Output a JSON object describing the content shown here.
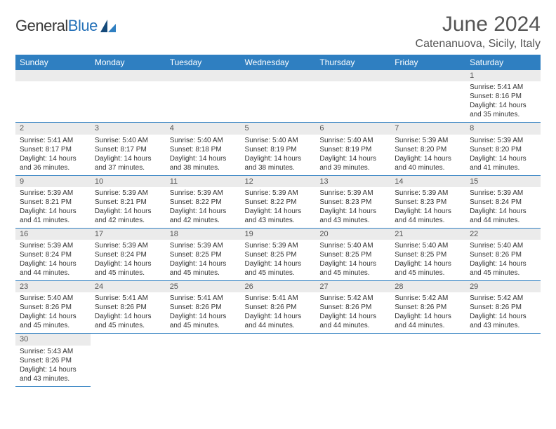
{
  "logo": {
    "text1": "General",
    "text2": "Blue"
  },
  "title": "June 2024",
  "location": "Catenanuova, Sicily, Italy",
  "colors": {
    "header_bg": "#2f7fc1",
    "header_fg": "#ffffff",
    "daynum_bg": "#ebebeb",
    "border": "#2f7fc1",
    "text": "#333333",
    "title_text": "#555555"
  },
  "weekdays": [
    "Sunday",
    "Monday",
    "Tuesday",
    "Wednesday",
    "Thursday",
    "Friday",
    "Saturday"
  ],
  "weeks": [
    [
      null,
      null,
      null,
      null,
      null,
      null,
      {
        "n": "1",
        "sr": "Sunrise: 5:41 AM",
        "ss": "Sunset: 8:16 PM",
        "d1": "Daylight: 14 hours",
        "d2": "and 35 minutes."
      }
    ],
    [
      {
        "n": "2",
        "sr": "Sunrise: 5:41 AM",
        "ss": "Sunset: 8:17 PM",
        "d1": "Daylight: 14 hours",
        "d2": "and 36 minutes."
      },
      {
        "n": "3",
        "sr": "Sunrise: 5:40 AM",
        "ss": "Sunset: 8:17 PM",
        "d1": "Daylight: 14 hours",
        "d2": "and 37 minutes."
      },
      {
        "n": "4",
        "sr": "Sunrise: 5:40 AM",
        "ss": "Sunset: 8:18 PM",
        "d1": "Daylight: 14 hours",
        "d2": "and 38 minutes."
      },
      {
        "n": "5",
        "sr": "Sunrise: 5:40 AM",
        "ss": "Sunset: 8:19 PM",
        "d1": "Daylight: 14 hours",
        "d2": "and 38 minutes."
      },
      {
        "n": "6",
        "sr": "Sunrise: 5:40 AM",
        "ss": "Sunset: 8:19 PM",
        "d1": "Daylight: 14 hours",
        "d2": "and 39 minutes."
      },
      {
        "n": "7",
        "sr": "Sunrise: 5:39 AM",
        "ss": "Sunset: 8:20 PM",
        "d1": "Daylight: 14 hours",
        "d2": "and 40 minutes."
      },
      {
        "n": "8",
        "sr": "Sunrise: 5:39 AM",
        "ss": "Sunset: 8:20 PM",
        "d1": "Daylight: 14 hours",
        "d2": "and 41 minutes."
      }
    ],
    [
      {
        "n": "9",
        "sr": "Sunrise: 5:39 AM",
        "ss": "Sunset: 8:21 PM",
        "d1": "Daylight: 14 hours",
        "d2": "and 41 minutes."
      },
      {
        "n": "10",
        "sr": "Sunrise: 5:39 AM",
        "ss": "Sunset: 8:21 PM",
        "d1": "Daylight: 14 hours",
        "d2": "and 42 minutes."
      },
      {
        "n": "11",
        "sr": "Sunrise: 5:39 AM",
        "ss": "Sunset: 8:22 PM",
        "d1": "Daylight: 14 hours",
        "d2": "and 42 minutes."
      },
      {
        "n": "12",
        "sr": "Sunrise: 5:39 AM",
        "ss": "Sunset: 8:22 PM",
        "d1": "Daylight: 14 hours",
        "d2": "and 43 minutes."
      },
      {
        "n": "13",
        "sr": "Sunrise: 5:39 AM",
        "ss": "Sunset: 8:23 PM",
        "d1": "Daylight: 14 hours",
        "d2": "and 43 minutes."
      },
      {
        "n": "14",
        "sr": "Sunrise: 5:39 AM",
        "ss": "Sunset: 8:23 PM",
        "d1": "Daylight: 14 hours",
        "d2": "and 44 minutes."
      },
      {
        "n": "15",
        "sr": "Sunrise: 5:39 AM",
        "ss": "Sunset: 8:24 PM",
        "d1": "Daylight: 14 hours",
        "d2": "and 44 minutes."
      }
    ],
    [
      {
        "n": "16",
        "sr": "Sunrise: 5:39 AM",
        "ss": "Sunset: 8:24 PM",
        "d1": "Daylight: 14 hours",
        "d2": "and 44 minutes."
      },
      {
        "n": "17",
        "sr": "Sunrise: 5:39 AM",
        "ss": "Sunset: 8:24 PM",
        "d1": "Daylight: 14 hours",
        "d2": "and 45 minutes."
      },
      {
        "n": "18",
        "sr": "Sunrise: 5:39 AM",
        "ss": "Sunset: 8:25 PM",
        "d1": "Daylight: 14 hours",
        "d2": "and 45 minutes."
      },
      {
        "n": "19",
        "sr": "Sunrise: 5:39 AM",
        "ss": "Sunset: 8:25 PM",
        "d1": "Daylight: 14 hours",
        "d2": "and 45 minutes."
      },
      {
        "n": "20",
        "sr": "Sunrise: 5:40 AM",
        "ss": "Sunset: 8:25 PM",
        "d1": "Daylight: 14 hours",
        "d2": "and 45 minutes."
      },
      {
        "n": "21",
        "sr": "Sunrise: 5:40 AM",
        "ss": "Sunset: 8:25 PM",
        "d1": "Daylight: 14 hours",
        "d2": "and 45 minutes."
      },
      {
        "n": "22",
        "sr": "Sunrise: 5:40 AM",
        "ss": "Sunset: 8:26 PM",
        "d1": "Daylight: 14 hours",
        "d2": "and 45 minutes."
      }
    ],
    [
      {
        "n": "23",
        "sr": "Sunrise: 5:40 AM",
        "ss": "Sunset: 8:26 PM",
        "d1": "Daylight: 14 hours",
        "d2": "and 45 minutes."
      },
      {
        "n": "24",
        "sr": "Sunrise: 5:41 AM",
        "ss": "Sunset: 8:26 PM",
        "d1": "Daylight: 14 hours",
        "d2": "and 45 minutes."
      },
      {
        "n": "25",
        "sr": "Sunrise: 5:41 AM",
        "ss": "Sunset: 8:26 PM",
        "d1": "Daylight: 14 hours",
        "d2": "and 45 minutes."
      },
      {
        "n": "26",
        "sr": "Sunrise: 5:41 AM",
        "ss": "Sunset: 8:26 PM",
        "d1": "Daylight: 14 hours",
        "d2": "and 44 minutes."
      },
      {
        "n": "27",
        "sr": "Sunrise: 5:42 AM",
        "ss": "Sunset: 8:26 PM",
        "d1": "Daylight: 14 hours",
        "d2": "and 44 minutes."
      },
      {
        "n": "28",
        "sr": "Sunrise: 5:42 AM",
        "ss": "Sunset: 8:26 PM",
        "d1": "Daylight: 14 hours",
        "d2": "and 44 minutes."
      },
      {
        "n": "29",
        "sr": "Sunrise: 5:42 AM",
        "ss": "Sunset: 8:26 PM",
        "d1": "Daylight: 14 hours",
        "d2": "and 43 minutes."
      }
    ],
    [
      {
        "n": "30",
        "sr": "Sunrise: 5:43 AM",
        "ss": "Sunset: 8:26 PM",
        "d1": "Daylight: 14 hours",
        "d2": "and 43 minutes."
      },
      null,
      null,
      null,
      null,
      null,
      null
    ]
  ]
}
